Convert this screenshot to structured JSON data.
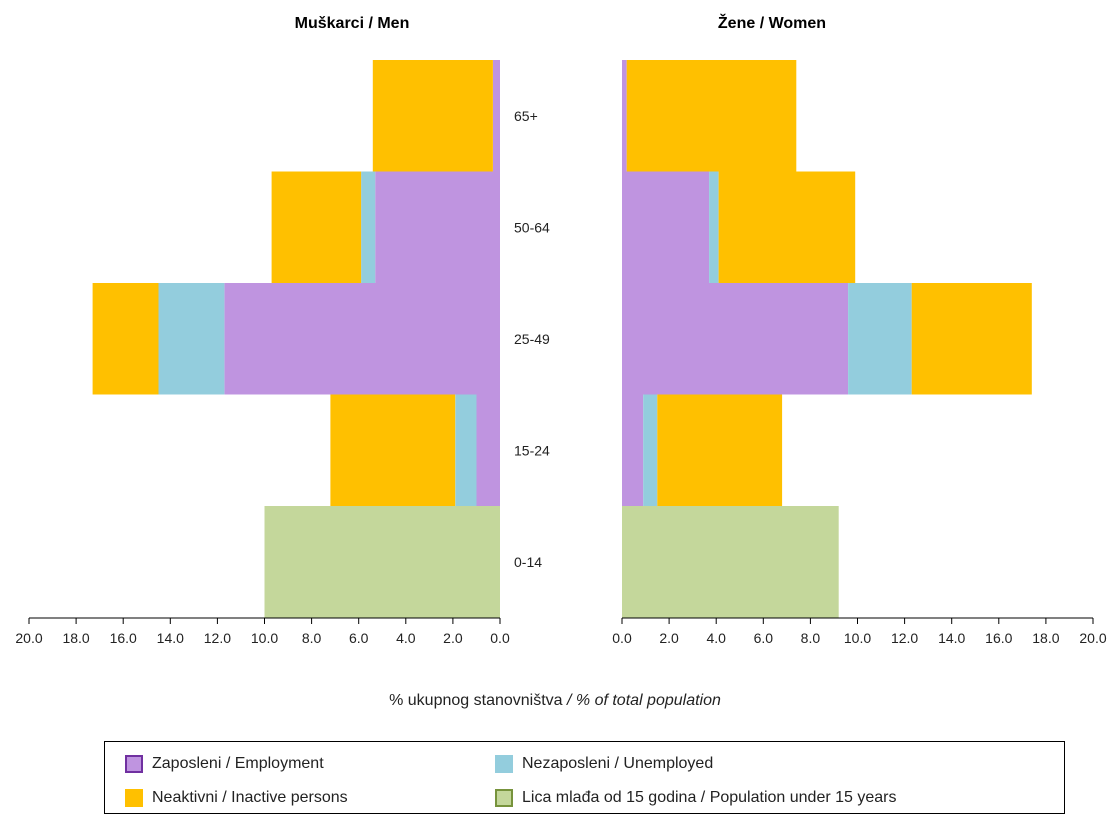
{
  "chart_data": {
    "type": "bar",
    "orientation": "horizontal",
    "categories": [
      "65+",
      "50-64",
      "25-49",
      "15-24",
      "0-14"
    ],
    "xlabel_regular": "% ukupnog stanovništva ",
    "xlabel_italic": "/ % of total population",
    "xlim": [
      0,
      20
    ],
    "xticks": [
      "0.0",
      "2.0",
      "4.0",
      "6.0",
      "8.0",
      "10.0",
      "12.0",
      "14.0",
      "16.0",
      "18.0",
      "20.0"
    ],
    "grid": false,
    "stacked": true,
    "panels": [
      {
        "title": "Muškarci / Men",
        "direction": "left",
        "series": [
          {
            "key": "employment",
            "values": [
              0.3,
              5.3,
              11.7,
              1.0,
              0
            ]
          },
          {
            "key": "unemployed",
            "values": [
              0,
              0.6,
              2.8,
              0.9,
              0
            ]
          },
          {
            "key": "inactive",
            "values": [
              5.1,
              3.8,
              2.8,
              5.3,
              0
            ]
          },
          {
            "key": "under15",
            "values": [
              0,
              0,
              0,
              0,
              10.0
            ]
          }
        ]
      },
      {
        "title": "Žene / Women",
        "direction": "right",
        "series": [
          {
            "key": "employment",
            "values": [
              0.2,
              3.7,
              9.6,
              0.9,
              0
            ]
          },
          {
            "key": "unemployed",
            "values": [
              0,
              0.4,
              2.7,
              0.6,
              0
            ]
          },
          {
            "key": "inactive",
            "values": [
              7.2,
              5.8,
              5.1,
              5.3,
              0
            ]
          },
          {
            "key": "under15",
            "values": [
              0,
              0,
              0,
              0,
              9.2
            ]
          }
        ]
      }
    ],
    "legend": {
      "placement": "bottom",
      "items": [
        {
          "key": "employment",
          "label": "Zaposleni / Employment",
          "color": "#bf94e0",
          "border": "#7030a0"
        },
        {
          "key": "unemployed",
          "label": "Nezaposleni / Unemployed",
          "color": "#93cddd",
          "border": "#93cddd"
        },
        {
          "key": "inactive",
          "label": "Neaktivni / Inactive persons",
          "color": "#ffc000",
          "border": "#ffc000"
        },
        {
          "key": "under15",
          "label": "Lica mlađa od 15 godina / Population under 15 years",
          "color": "#c4d79b",
          "border": "#77933c"
        }
      ]
    }
  }
}
